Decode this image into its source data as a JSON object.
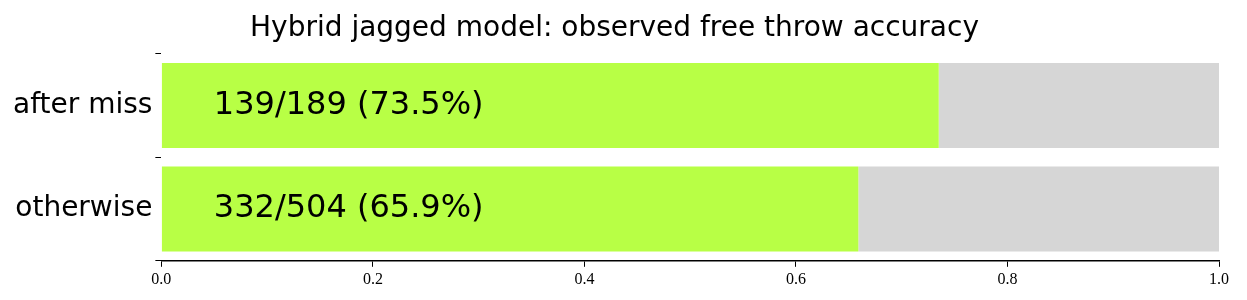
{
  "chart_data": {
    "type": "bar",
    "orientation": "horizontal",
    "stacked": true,
    "title": "Hybrid jagged model: observed free throw accuracy",
    "categories": [
      "after miss",
      "otherwise"
    ],
    "series": [
      {
        "color": "#b8ff45",
        "values": [
          0.735,
          0.659
        ],
        "value_labels": [
          "139/189 (73.5%)",
          "332/504 (65.9%)"
        ]
      },
      {
        "color": "#d6d6d6",
        "values": [
          0.265,
          0.341
        ]
      }
    ],
    "xlim": [
      0,
      1
    ],
    "xticks": [
      {
        "value": 0,
        "label": "0.0"
      },
      0.2,
      0.4,
      0.6,
      0.8,
      {
        "value": 1,
        "label": "1.0"
      }
    ],
    "grid": false,
    "legend": false
  }
}
